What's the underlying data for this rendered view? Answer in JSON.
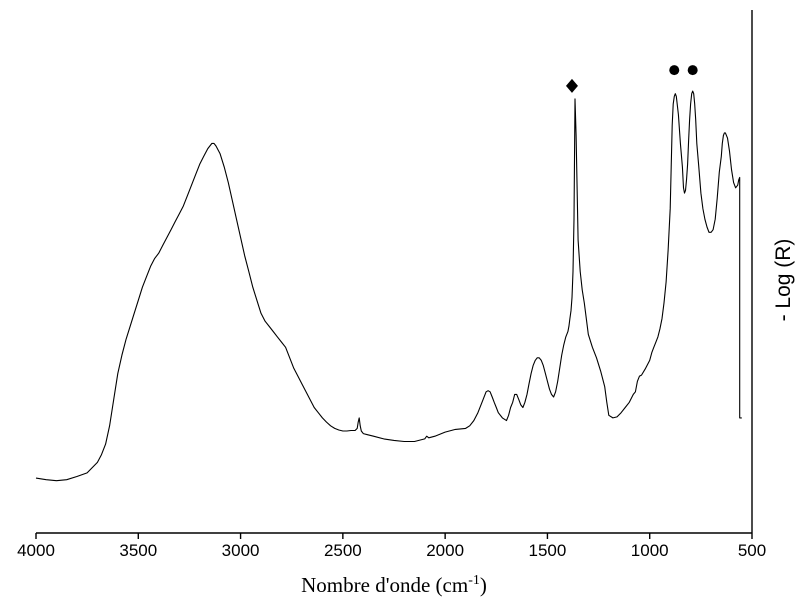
{
  "chart_data": {
    "type": "line",
    "title": "",
    "xlabel": "Nombre d'onde (cm",
    "xlabel_sup": "-1",
    "xlabel_close": ")",
    "ylabel": "- Log (R)",
    "xlim": [
      4000,
      500
    ],
    "ylim": [
      0,
      1
    ],
    "x_reversed": true,
    "x_ticks": [
      4000,
      3500,
      3000,
      2500,
      2000,
      1500,
      1000,
      500
    ],
    "x_tick_labels": [
      "4000",
      "3500",
      "3000",
      "2500",
      "2000",
      "1500",
      "1000",
      "500"
    ],
    "y_ticks_shown": false,
    "grid": false,
    "legend": "none",
    "series": [
      {
        "x": [
          4000,
          3950,
          3900,
          3850,
          3800,
          3750,
          3700,
          3680,
          3660,
          3640,
          3620,
          3600,
          3580,
          3560,
          3540,
          3520,
          3500,
          3480,
          3460,
          3440,
          3420,
          3400,
          3380,
          3360,
          3340,
          3320,
          3300,
          3280,
          3260,
          3240,
          3220,
          3200,
          3180,
          3160,
          3140,
          3130,
          3120,
          3100,
          3080,
          3060,
          3040,
          3020,
          3000,
          2980,
          2960,
          2940,
          2920,
          2900,
          2880,
          2860,
          2840,
          2820,
          2800,
          2780,
          2760,
          2740,
          2720,
          2700,
          2680,
          2660,
          2640,
          2620,
          2600,
          2580,
          2560,
          2540,
          2520,
          2500,
          2480,
          2460,
          2440,
          2430,
          2425,
          2420,
          2415,
          2410,
          2400,
          2380,
          2350,
          2300,
          2250,
          2200,
          2150,
          2100,
          2090,
          2080,
          2050,
          2000,
          1950,
          1900,
          1880,
          1860,
          1840,
          1820,
          1800,
          1790,
          1780,
          1770,
          1760,
          1750,
          1740,
          1720,
          1700,
          1690,
          1680,
          1670,
          1660,
          1650,
          1640,
          1630,
          1620,
          1610,
          1600,
          1590,
          1580,
          1570,
          1560,
          1550,
          1540,
          1530,
          1520,
          1510,
          1500,
          1490,
          1480,
          1470,
          1460,
          1450,
          1440,
          1430,
          1420,
          1410,
          1400,
          1395,
          1390,
          1385,
          1380,
          1375,
          1370,
          1365,
          1360,
          1350,
          1340,
          1330,
          1320,
          1310,
          1300,
          1280,
          1260,
          1240,
          1220,
          1210,
          1200,
          1180,
          1160,
          1140,
          1120,
          1100,
          1080,
          1070,
          1060,
          1050,
          1040,
          1020,
          1000,
          990,
          980,
          970,
          960,
          950,
          940,
          930,
          920,
          910,
          900,
          895,
          890,
          885,
          880,
          875,
          870,
          860,
          850,
          840,
          835,
          830,
          825,
          820,
          815,
          810,
          805,
          800,
          795,
          790,
          785,
          780,
          775,
          770,
          760,
          750,
          740,
          730,
          720,
          710,
          700,
          690,
          680,
          670,
          660,
          650,
          645,
          640,
          635,
          630,
          620,
          610,
          600,
          590,
          580,
          570,
          565,
          560,
          560,
          550
        ],
        "y": [
          0.105,
          0.102,
          0.1,
          0.102,
          0.108,
          0.115,
          0.135,
          0.15,
          0.17,
          0.205,
          0.255,
          0.305,
          0.34,
          0.37,
          0.395,
          0.42,
          0.445,
          0.47,
          0.49,
          0.51,
          0.525,
          0.535,
          0.55,
          0.565,
          0.58,
          0.595,
          0.61,
          0.625,
          0.645,
          0.665,
          0.685,
          0.705,
          0.72,
          0.735,
          0.745,
          0.745,
          0.74,
          0.725,
          0.7,
          0.67,
          0.635,
          0.6,
          0.565,
          0.53,
          0.5,
          0.47,
          0.445,
          0.42,
          0.405,
          0.395,
          0.385,
          0.375,
          0.365,
          0.355,
          0.335,
          0.315,
          0.3,
          0.285,
          0.27,
          0.255,
          0.24,
          0.23,
          0.22,
          0.212,
          0.205,
          0.2,
          0.197,
          0.195,
          0.195,
          0.196,
          0.196,
          0.2,
          0.212,
          0.22,
          0.205,
          0.195,
          0.19,
          0.188,
          0.185,
          0.18,
          0.177,
          0.175,
          0.175,
          0.18,
          0.185,
          0.182,
          0.185,
          0.193,
          0.198,
          0.2,
          0.205,
          0.215,
          0.23,
          0.25,
          0.27,
          0.272,
          0.27,
          0.26,
          0.25,
          0.24,
          0.23,
          0.22,
          0.215,
          0.225,
          0.24,
          0.25,
          0.265,
          0.265,
          0.255,
          0.245,
          0.24,
          0.25,
          0.265,
          0.285,
          0.305,
          0.32,
          0.33,
          0.335,
          0.335,
          0.33,
          0.32,
          0.305,
          0.29,
          0.275,
          0.265,
          0.26,
          0.27,
          0.29,
          0.315,
          0.34,
          0.36,
          0.375,
          0.385,
          0.395,
          0.41,
          0.425,
          0.45,
          0.5,
          0.6,
          0.83,
          0.76,
          0.56,
          0.5,
          0.465,
          0.44,
          0.41,
          0.38,
          0.355,
          0.335,
          0.31,
          0.28,
          0.25,
          0.225,
          0.22,
          0.222,
          0.23,
          0.24,
          0.25,
          0.265,
          0.27,
          0.29,
          0.3,
          0.302,
          0.315,
          0.33,
          0.345,
          0.355,
          0.365,
          0.375,
          0.39,
          0.41,
          0.44,
          0.48,
          0.54,
          0.62,
          0.7,
          0.78,
          0.82,
          0.835,
          0.84,
          0.835,
          0.8,
          0.745,
          0.7,
          0.66,
          0.65,
          0.655,
          0.675,
          0.705,
          0.75,
          0.79,
          0.82,
          0.84,
          0.845,
          0.84,
          0.82,
          0.79,
          0.745,
          0.7,
          0.65,
          0.62,
          0.6,
          0.585,
          0.575,
          0.575,
          0.58,
          0.6,
          0.64,
          0.69,
          0.72,
          0.745,
          0.76,
          0.765,
          0.765,
          0.755,
          0.73,
          0.695,
          0.67,
          0.66,
          0.665,
          0.675,
          0.68,
          0.22,
          0.22
        ]
      }
    ],
    "annotations": [
      {
        "marker": "diamond",
        "x": 1380,
        "y": 0.855
      },
      {
        "marker": "circle",
        "x": 880,
        "y": 0.885
      },
      {
        "marker": "circle",
        "x": 790,
        "y": 0.885
      }
    ]
  }
}
